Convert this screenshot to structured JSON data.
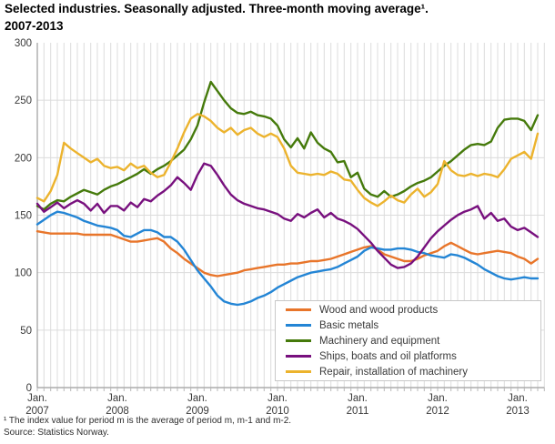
{
  "figure": {
    "title_line1": "Selected industries. Seasonally adjusted. Three-month moving average¹.",
    "title_line2": "2007-2013",
    "footnote": "¹ The index value for period m is the average of period m, m-1 and m-2.",
    "source": "Source: Statistics Norway."
  },
  "chart_data": {
    "type": "line",
    "title": "Selected industries. Seasonally adjusted. Three-month moving average. 2007-2013",
    "x_unit": "month",
    "x_start": "2007-01",
    "x_end": "2013-04",
    "ylim": [
      0,
      300
    ],
    "y_ticks": [
      0,
      50,
      100,
      150,
      200,
      250,
      300
    ],
    "x_tick_labels": [
      {
        "month": "Jan.",
        "year": "2007"
      },
      {
        "month": "Jan.",
        "year": "2008"
      },
      {
        "month": "Jan.",
        "year": "2009"
      },
      {
        "month": "Jan.",
        "year": "2010"
      },
      {
        "month": "Jan.",
        "year": "2011"
      },
      {
        "month": "Jan.",
        "year": "2012"
      },
      {
        "month": "Jan.",
        "year": "2013"
      }
    ],
    "grid": "monthly vertical lines and horizontal lines every 50",
    "legend_position": "inside bottom-right",
    "series": [
      {
        "name": "Wood and wood products",
        "color": "#e8752a",
        "values": [
          136,
          135,
          134,
          134,
          134,
          134,
          134,
          133,
          133,
          133,
          133,
          133,
          131,
          129,
          127,
          127,
          128,
          129,
          130,
          127,
          121,
          117,
          112,
          108,
          104,
          100,
          98,
          97,
          98,
          99,
          100,
          102,
          103,
          104,
          105,
          106,
          107,
          107,
          108,
          108,
          109,
          110,
          110,
          111,
          112,
          114,
          116,
          118,
          120,
          122,
          123,
          120,
          116,
          114,
          112,
          110,
          110,
          112,
          115,
          117,
          119,
          123,
          126,
          123,
          120,
          117,
          116,
          117,
          118,
          119,
          118,
          117,
          114,
          112,
          108,
          112
        ]
      },
      {
        "name": "Basic metals",
        "color": "#2385d5",
        "values": [
          142,
          146,
          150,
          153,
          152,
          150,
          148,
          145,
          143,
          141,
          140,
          139,
          137,
          132,
          131,
          134,
          137,
          137,
          135,
          131,
          131,
          127,
          120,
          111,
          102,
          95,
          88,
          80,
          75,
          73,
          72,
          73,
          75,
          78,
          80,
          83,
          87,
          90,
          93,
          96,
          98,
          100,
          101,
          102,
          103,
          105,
          108,
          111,
          114,
          119,
          122,
          121,
          120,
          120,
          121,
          121,
          120,
          118,
          117,
          115,
          114,
          113,
          116,
          115,
          113,
          110,
          107,
          103,
          100,
          97,
          95,
          94,
          95,
          96,
          95,
          95
        ]
      },
      {
        "name": "Machinery and equipment",
        "color": "#457a0b",
        "values": [
          158,
          155,
          160,
          163,
          162,
          166,
          169,
          172,
          170,
          168,
          172,
          175,
          177,
          180,
          183,
          186,
          190,
          186,
          190,
          193,
          197,
          202,
          207,
          216,
          228,
          248,
          266,
          258,
          250,
          243,
          239,
          238,
          240,
          237,
          236,
          234,
          228,
          216,
          209,
          217,
          208,
          222,
          213,
          208,
          205,
          196,
          197,
          183,
          187,
          173,
          168,
          166,
          171,
          166,
          168,
          171,
          175,
          178,
          180,
          183,
          188,
          193,
          197,
          202,
          207,
          211,
          212,
          211,
          214,
          226,
          233,
          234,
          234,
          232,
          224,
          237
        ]
      },
      {
        "name": "Ships, boats and oil platforms",
        "color": "#78107e",
        "values": [
          160,
          153,
          157,
          161,
          156,
          160,
          163,
          160,
          154,
          160,
          152,
          158,
          158,
          154,
          161,
          157,
          164,
          162,
          167,
          171,
          176,
          183,
          178,
          172,
          185,
          195,
          193,
          185,
          176,
          168,
          163,
          160,
          158,
          156,
          155,
          153,
          151,
          147,
          145,
          151,
          148,
          152,
          155,
          148,
          152,
          147,
          145,
          142,
          138,
          132,
          126,
          119,
          113,
          107,
          104,
          105,
          108,
          114,
          122,
          130,
          136,
          141,
          146,
          150,
          153,
          155,
          158,
          147,
          152,
          145,
          147,
          140,
          137,
          139,
          135,
          131
        ]
      },
      {
        "name": "Repair, installation of machinery",
        "color": "#ecb32d",
        "values": [
          165,
          162,
          171,
          185,
          213,
          208,
          204,
          200,
          196,
          199,
          193,
          191,
          192,
          189,
          195,
          191,
          193,
          187,
          183,
          185,
          196,
          208,
          222,
          234,
          238,
          236,
          232,
          226,
          222,
          226,
          220,
          224,
          226,
          221,
          218,
          221,
          218,
          208,
          193,
          187,
          186,
          185,
          186,
          185,
          188,
          186,
          181,
          180,
          172,
          165,
          161,
          158,
          162,
          167,
          163,
          161,
          168,
          173,
          166,
          170,
          177,
          197,
          189,
          185,
          184,
          186,
          184,
          186,
          185,
          183,
          190,
          199,
          202,
          205,
          199,
          221
        ]
      }
    ]
  }
}
